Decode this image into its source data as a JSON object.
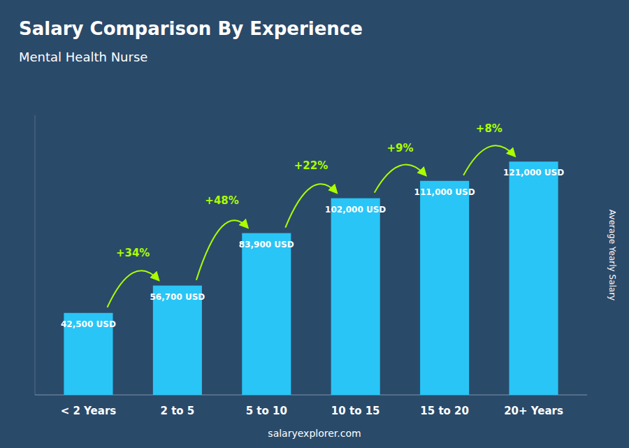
{
  "chart_data": {
    "type": "bar",
    "title": "Salary Comparison By Experience",
    "subtitle": "Mental Health Nurse",
    "categories": [
      "< 2 Years",
      "2 to 5",
      "5 to 10",
      "10 to 15",
      "15 to 20",
      "20+ Years"
    ],
    "values": [
      42500,
      56700,
      83900,
      102000,
      111000,
      121000
    ],
    "value_labels": [
      "42,500 USD",
      "56,700 USD",
      "83,900 USD",
      "102,000 USD",
      "111,000 USD",
      "121,000 USD"
    ],
    "data_labels": true,
    "annotations": [
      "+34%",
      "+48%",
      "+22%",
      "+9%",
      "+8%"
    ],
    "color": "#29C5F6",
    "ylabel": "Average Yearly Salary",
    "source": "salaryexplorer.com",
    "ylim": [
      0,
      145000
    ],
    "tick_labels": "x",
    "grid": false
  }
}
